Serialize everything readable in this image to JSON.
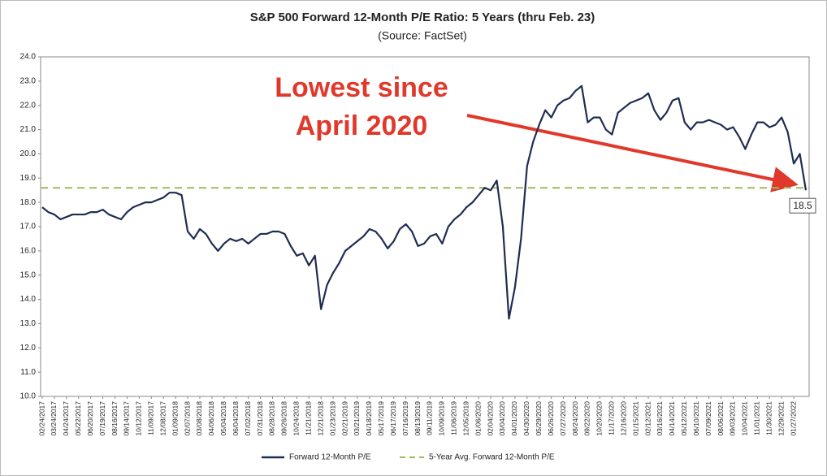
{
  "chart_data": {
    "type": "line",
    "title": "S&P 500 Forward 12-Month P/E Ratio: 5 Years (thru Feb. 23)",
    "subtitle": "(Source: FactSet)",
    "annotation": [
      "Lowest since",
      "April 2020"
    ],
    "categories": [
      "02/24/2017",
      null,
      "03/24/2017",
      null,
      "04/24/2017",
      null,
      "05/22/2017",
      null,
      "06/20/2017",
      null,
      "07/19/2017",
      null,
      "08/16/2017",
      null,
      "09/14/2017",
      null,
      "10/12/2017",
      null,
      "11/09/2017",
      null,
      "12/08/2017",
      null,
      "01/09/2018",
      null,
      "02/07/2018",
      null,
      "03/08/2018",
      null,
      "04/06/2018",
      null,
      "05/04/2018",
      null,
      "06/04/2018",
      null,
      "07/02/2018",
      null,
      "07/31/2018",
      null,
      "08/28/2018",
      null,
      "09/26/2018",
      null,
      "10/24/2018",
      null,
      "11/21/2018",
      null,
      "12/21/2018",
      null,
      "01/23/2019",
      null,
      "02/21/2019",
      null,
      "03/21/2019",
      null,
      "04/18/2019",
      null,
      "05/17/2019",
      null,
      "06/17/2019",
      null,
      "07/16/2019",
      null,
      "08/13/2019",
      null,
      "09/11/2019",
      null,
      "10/09/2019",
      null,
      "11/06/2019",
      null,
      "12/05/2019",
      null,
      "01/06/2020",
      null,
      "02/04/2020",
      null,
      "03/04/2020",
      null,
      "04/01/2020",
      null,
      "04/30/2020",
      null,
      "05/29/2020",
      null,
      "06/26/2020",
      null,
      "07/27/2020",
      null,
      "08/24/2020",
      null,
      "09/22/2020",
      null,
      "10/20/2020",
      null,
      "11/17/2020",
      null,
      "12/16/2020",
      null,
      "01/15/2021",
      null,
      "02/12/2021",
      null,
      "03/16/2021",
      null,
      "04/14/2021",
      null,
      "05/12/2021",
      null,
      "06/10/2021",
      null,
      "07/09/2021",
      null,
      "08/06/2021",
      null,
      "09/03/2021",
      null,
      "10/04/2021",
      null,
      "11/01/2021",
      null,
      "11/30/2021",
      null,
      "12/29/2021",
      null,
      "01/27/2022",
      null,
      null
    ],
    "series": [
      {
        "name": "Forward 12-Month P/E",
        "color": "#1f2d52",
        "values": [
          17.8,
          17.6,
          17.5,
          17.3,
          17.4,
          17.5,
          17.5,
          17.5,
          17.6,
          17.6,
          17.7,
          17.5,
          17.4,
          17.3,
          17.6,
          17.8,
          17.9,
          18.0,
          18.0,
          18.1,
          18.2,
          18.4,
          18.4,
          18.3,
          16.8,
          16.5,
          16.9,
          16.7,
          16.3,
          16.0,
          16.3,
          16.5,
          16.4,
          16.5,
          16.3,
          16.5,
          16.7,
          16.7,
          16.8,
          16.8,
          16.7,
          16.2,
          15.8,
          15.9,
          15.4,
          15.8,
          13.6,
          14.6,
          15.1,
          15.5,
          16.0,
          16.2,
          16.4,
          16.6,
          16.9,
          16.8,
          16.5,
          16.1,
          16.4,
          16.9,
          17.1,
          16.8,
          16.2,
          16.3,
          16.6,
          16.7,
          16.3,
          17.0,
          17.3,
          17.5,
          17.8,
          18.0,
          18.3,
          18.6,
          18.5,
          18.9,
          17.0,
          13.2,
          14.5,
          16.5,
          19.5,
          20.5,
          21.2,
          21.8,
          21.5,
          22.0,
          22.2,
          22.3,
          22.6,
          22.8,
          21.3,
          21.5,
          21.5,
          21.0,
          20.8,
          21.7,
          21.9,
          22.1,
          22.2,
          22.3,
          22.5,
          21.8,
          21.4,
          21.7,
          22.2,
          22.3,
          21.3,
          21.0,
          21.3,
          21.3,
          21.4,
          21.3,
          21.2,
          21.0,
          21.1,
          20.7,
          20.2,
          20.8,
          21.3,
          21.3,
          21.1,
          21.2,
          21.5,
          20.9,
          19.6,
          20.0,
          18.5
        ],
        "value_labels": [
          null,
          null,
          null,
          null,
          null,
          null,
          null,
          null,
          null,
          null,
          null,
          null,
          null,
          null,
          null,
          null,
          null,
          null,
          null,
          null,
          null,
          null,
          null,
          null,
          null,
          null,
          null,
          null,
          null,
          null,
          null,
          null,
          null,
          null,
          null,
          null,
          null,
          null,
          null,
          null,
          null,
          null,
          null,
          null,
          null,
          null,
          null,
          null,
          null,
          null,
          null,
          null,
          null,
          null,
          null,
          null,
          null,
          null,
          null,
          null,
          null,
          null,
          null,
          null,
          null,
          null,
          null,
          null,
          null,
          null,
          null,
          null,
          null,
          null,
          null,
          null,
          null,
          null,
          null,
          null,
          null,
          null,
          null,
          null,
          null,
          null,
          null,
          null,
          null,
          null,
          null,
          null,
          null,
          null,
          null,
          null,
          null,
          null,
          null,
          null,
          null,
          null,
          null,
          null,
          null,
          null,
          null,
          null,
          null,
          null,
          null,
          null,
          null,
          null,
          null,
          null,
          null,
          null,
          null,
          null,
          null,
          null,
          null,
          null,
          null,
          null,
          "18.5"
        ]
      }
    ],
    "reference_line": {
      "name": "5-Year Avg. Forward 12-Month P/E",
      "value": 18.6,
      "color": "#9bbb59"
    },
    "ylim": [
      10,
      24
    ],
    "yticks": [
      {
        "value": 10,
        "label": "10.0"
      },
      {
        "value": 11,
        "label": "11.0"
      },
      {
        "value": 12,
        "label": "12.0"
      },
      {
        "value": 13,
        "label": "13.0"
      },
      {
        "value": 14,
        "label": "14.0"
      },
      {
        "value": 15,
        "label": "15.0"
      },
      {
        "value": 16,
        "label": "16.0"
      },
      {
        "value": 17,
        "label": "17.0"
      },
      {
        "value": 18,
        "label": "18.0"
      },
      {
        "value": 19,
        "label": "19.0"
      },
      {
        "value": 20,
        "label": "20.0"
      },
      {
        "value": 21,
        "label": "21.0"
      },
      {
        "value": 22,
        "label": "22.0"
      },
      {
        "value": 23,
        "label": "23.0"
      },
      {
        "value": 24,
        "label": "24.0"
      }
    ],
    "grid": false,
    "legend": "bottom"
  }
}
